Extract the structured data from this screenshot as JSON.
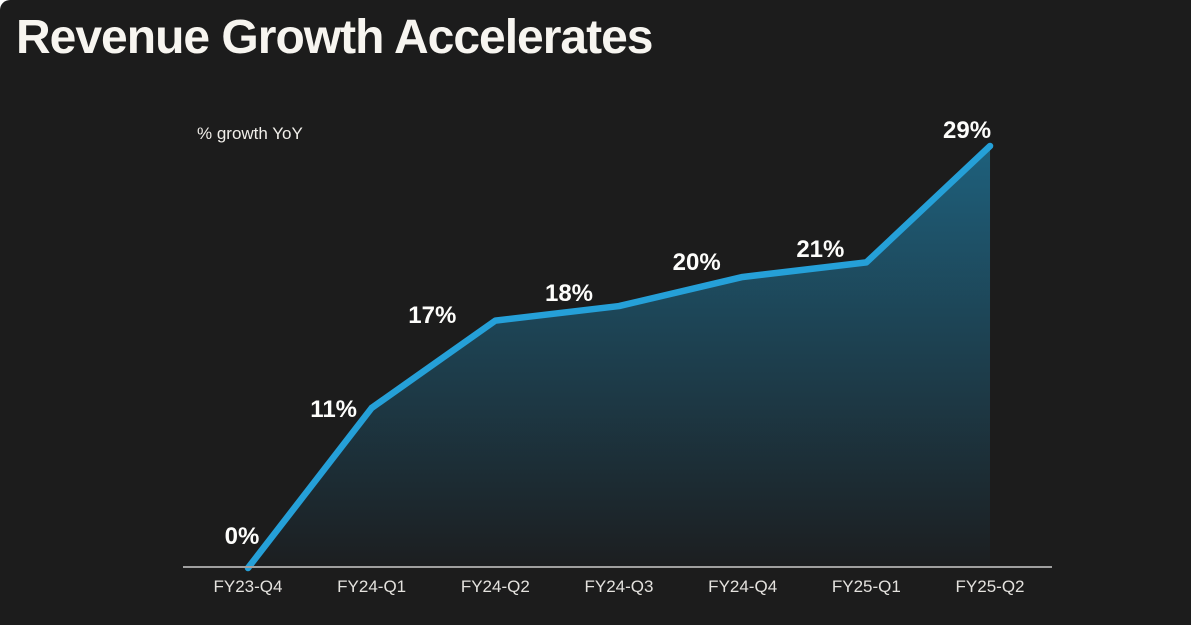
{
  "title": "Revenue Growth Accelerates",
  "chart_data": {
    "type": "area",
    "title": "Revenue Growth Accelerates",
    "ylabel": "% growth YoY",
    "xlabel": "",
    "categories": [
      "FY23-Q4",
      "FY24-Q1",
      "FY24-Q2",
      "FY24-Q3",
      "FY24-Q4",
      "FY25-Q1",
      "FY25-Q2"
    ],
    "values": [
      0,
      11,
      17,
      18,
      20,
      21,
      29
    ],
    "point_labels": [
      "0%",
      "11%",
      "17%",
      "18%",
      "20%",
      "21%",
      "29%"
    ],
    "ylim": [
      0,
      29
    ],
    "grid": false,
    "legend": false,
    "colors": {
      "line": "#25a0d8",
      "area_top": "#1e607c",
      "area_bottom": "#1c1e20",
      "background": "#1c1c1c",
      "axis": "#9f9f9f",
      "label_text": "#fdfdfb",
      "tick_text": "#e4e2de",
      "title_text": "#f7f5f0"
    }
  }
}
